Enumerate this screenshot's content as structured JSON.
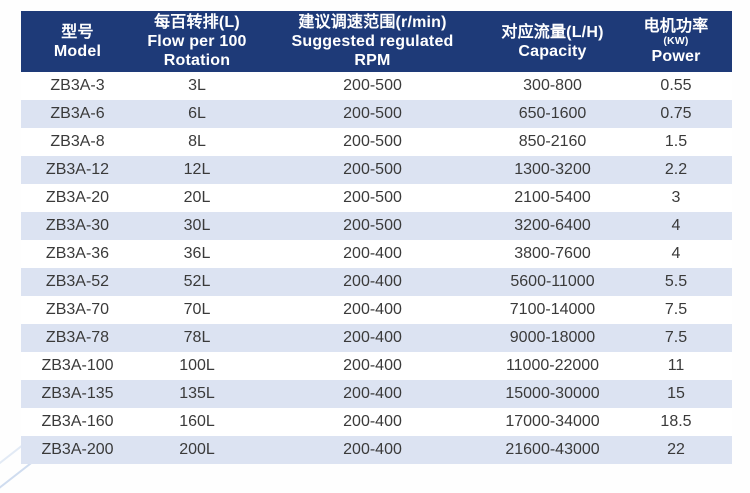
{
  "colors": {
    "header_bg": "#1e3a78",
    "header_text": "#ffffff",
    "stripe_bg": "#dce3f2",
    "row_bg": "#ffffff",
    "body_text": "#3a3a3a",
    "page_bg": "#fefefe"
  },
  "table": {
    "columns": [
      {
        "id": "model",
        "lines": [
          "型号",
          "Model"
        ]
      },
      {
        "id": "flow",
        "lines": [
          "每百转排(L)",
          "Flow per 100",
          "Rotation"
        ]
      },
      {
        "id": "rpm",
        "lines": [
          "建议调速范围(r/min)",
          "Suggested regulated",
          "RPM"
        ]
      },
      {
        "id": "capacity",
        "lines": [
          "对应流量(L/H)",
          "Capacity"
        ]
      },
      {
        "id": "power",
        "lines": [
          "电机功率",
          "(KW)",
          "Power"
        ],
        "small_line": 1
      }
    ],
    "rows": [
      [
        "ZB3A-3",
        "3L",
        "200-500",
        "300-800",
        "0.55"
      ],
      [
        "ZB3A-6",
        "6L",
        "200-500",
        "650-1600",
        "0.75"
      ],
      [
        "ZB3A-8",
        "8L",
        "200-500",
        "850-2160",
        "1.5"
      ],
      [
        "ZB3A-12",
        "12L",
        "200-500",
        "1300-3200",
        "2.2"
      ],
      [
        "ZB3A-20",
        "20L",
        "200-500",
        "2100-5400",
        "3"
      ],
      [
        "ZB3A-30",
        "30L",
        "200-500",
        "3200-6400",
        "4"
      ],
      [
        "ZB3A-36",
        "36L",
        "200-400",
        "3800-7600",
        "4"
      ],
      [
        "ZB3A-52",
        "52L",
        "200-400",
        "5600-11000",
        "5.5"
      ],
      [
        "ZB3A-70",
        "70L",
        "200-400",
        "7100-14000",
        "7.5"
      ],
      [
        "ZB3A-78",
        "78L",
        "200-400",
        "9000-18000",
        "7.5"
      ],
      [
        "ZB3A-100",
        "100L",
        "200-400",
        "11000-22000",
        "11"
      ],
      [
        "ZB3A-135",
        "135L",
        "200-400",
        "15000-30000",
        "15"
      ],
      [
        "ZB3A-160",
        "160L",
        "200-400",
        "17000-34000",
        "18.5"
      ],
      [
        "ZB3A-200",
        "200L",
        "200-400",
        "21600-43000",
        "22"
      ]
    ]
  }
}
